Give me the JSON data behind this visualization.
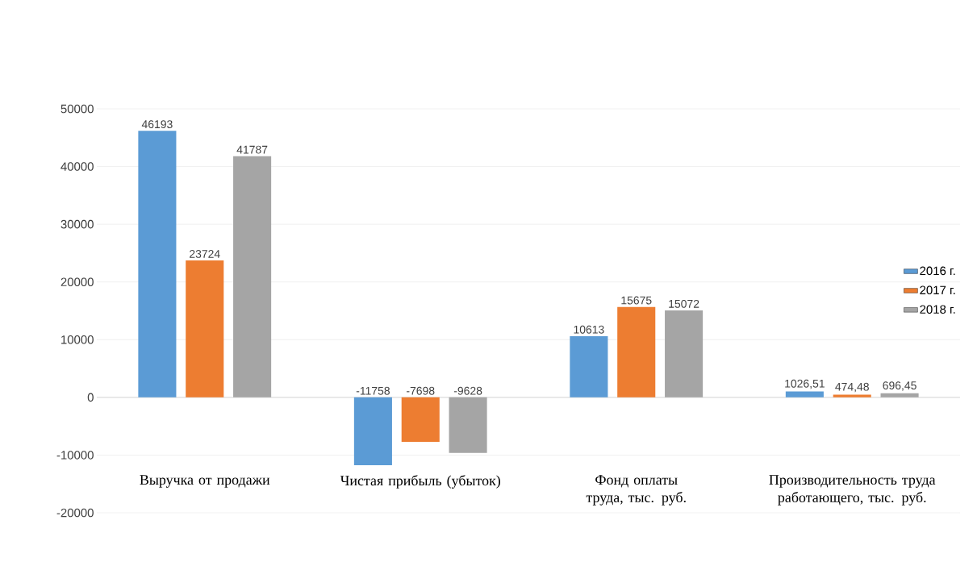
{
  "chart_data": {
    "type": "bar",
    "categories": [
      "Выручка от продажи",
      "Чистая прибыль (убыток)",
      "Фонд оплаты труда, тыс. руб.",
      "Производительность труда работающего, тыс. руб."
    ],
    "series": [
      {
        "name": "2016 г.",
        "color": "#5b9bd5",
        "values": [
          46193,
          -11758,
          10613,
          1026.51
        ],
        "value_labels": [
          "46193",
          "-11758",
          "10613",
          "1026,51"
        ]
      },
      {
        "name": "2017 г.",
        "color": "#ed7d31",
        "values": [
          23724,
          -7698,
          15675,
          474.48
        ],
        "value_labels": [
          "23724",
          "-7698",
          "15675",
          "474,48"
        ]
      },
      {
        "name": "2018 г.",
        "color": "#a5a5a5",
        "values": [
          41787,
          -9628,
          15072,
          696.45
        ],
        "value_labels": [
          "41787",
          "-9628",
          "15072",
          "696,45"
        ]
      }
    ],
    "ylim": [
      -20000,
      50000
    ],
    "yticks": [
      -20000,
      -10000,
      0,
      10000,
      20000,
      30000,
      40000,
      50000
    ],
    "grid": "y",
    "legend": "right"
  }
}
